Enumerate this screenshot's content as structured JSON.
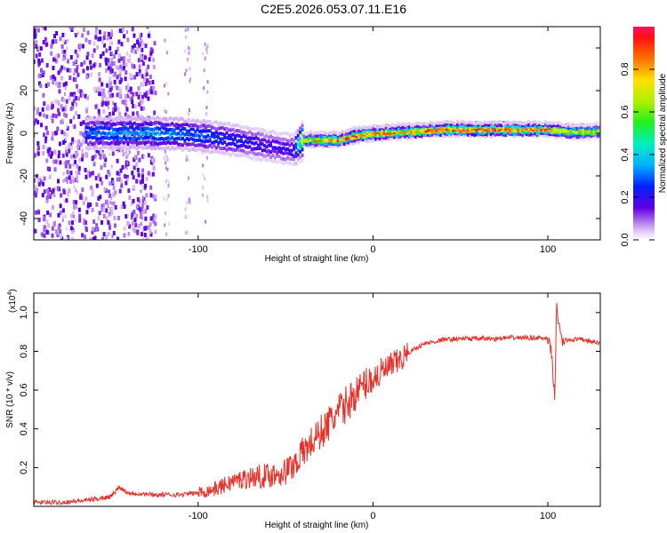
{
  "page_title": "C2E5.2026.053.07.11.E16",
  "chart_data": [
    {
      "id": "spectrogram",
      "type": "heatmap",
      "xlabel": "Height of straight line (km)",
      "ylabel": "Frequency (Hz)",
      "xlim": [
        -194,
        130
      ],
      "ylim": [
        -50,
        50
      ],
      "xticks": [
        -100,
        0,
        100
      ],
      "yticks": [
        -40,
        -20,
        0,
        20,
        40
      ],
      "colorbar": {
        "label": "Normalized spectral amplitude",
        "range": [
          0,
          1
        ],
        "ticks": [
          "0.0",
          "0.2",
          "0.4",
          "0.6",
          "0.8"
        ],
        "tick_values": [
          0,
          0.2,
          0.4,
          0.6,
          0.8
        ]
      },
      "signal_ridge": {
        "x": [
          -162,
          -140,
          -120,
          -100,
          -80,
          -60,
          -45,
          -40,
          -30,
          -20,
          -10,
          0,
          20,
          40,
          60,
          80,
          100,
          110,
          130
        ],
        "center_hz": [
          0,
          0,
          0,
          -1,
          -3,
          -6,
          -8,
          -3,
          -3,
          -3,
          -1,
          0,
          1,
          2,
          2,
          2,
          2,
          1,
          1
        ],
        "peak_amplitude": [
          0.3,
          0.35,
          0.35,
          0.3,
          0.25,
          0.2,
          0.2,
          0.7,
          0.85,
          0.95,
          0.95,
          0.95,
          0.9,
          0.95,
          1.0,
          1.0,
          0.95,
          0.8,
          0.75
        ]
      }
    },
    {
      "id": "snr",
      "type": "line",
      "xlabel": "Height of straight line (km)",
      "ylabel": "SNR (10 * v/v)",
      "multiplier_label": "(x10",
      "multiplier_exponent": "4",
      "multiplier_close": ")",
      "xlim": [
        -194,
        130
      ],
      "ylim": [
        0,
        1.1
      ],
      "xticks": [
        -100,
        0,
        100
      ],
      "yticks": [
        0.2,
        0.4,
        0.6,
        0.8,
        1.0
      ],
      "ytick_labels": [
        "0.2",
        "0.4",
        "0.6",
        "0.8",
        "1.0"
      ],
      "color": "#e8302a",
      "series": [
        {
          "name": "SNR",
          "x": [
            -194,
            -180,
            -165,
            -150,
            -145,
            -140,
            -125,
            -110,
            -100,
            -90,
            -80,
            -70,
            -60,
            -50,
            -45,
            -40,
            -35,
            -30,
            -25,
            -20,
            -15,
            -10,
            -5,
            0,
            5,
            10,
            15,
            20,
            25,
            30,
            40,
            50,
            60,
            70,
            80,
            90,
            95,
            100,
            102,
            104,
            105,
            106,
            108,
            112,
            120,
            130
          ],
          "y": [
            0.02,
            0.02,
            0.03,
            0.05,
            0.1,
            0.07,
            0.06,
            0.06,
            0.07,
            0.09,
            0.13,
            0.15,
            0.16,
            0.18,
            0.22,
            0.28,
            0.33,
            0.38,
            0.43,
            0.48,
            0.53,
            0.58,
            0.63,
            0.66,
            0.69,
            0.72,
            0.75,
            0.79,
            0.82,
            0.84,
            0.86,
            0.865,
            0.865,
            0.865,
            0.87,
            0.87,
            0.87,
            0.86,
            0.8,
            0.55,
            1.08,
            0.95,
            0.85,
            0.86,
            0.86,
            0.84
          ]
        }
      ]
    }
  ]
}
